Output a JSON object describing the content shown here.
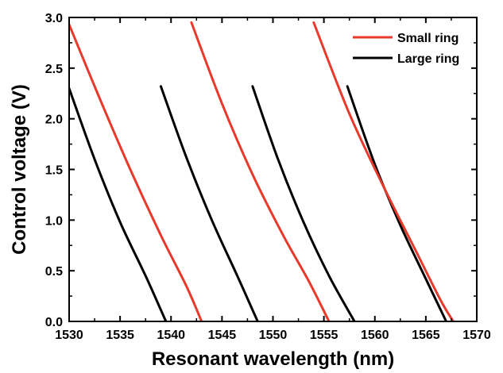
{
  "chart_data": {
    "type": "line",
    "xlabel": "Resonant wavelength (nm)",
    "ylabel": "Control voltage (V)",
    "xlim": [
      1530,
      1570
    ],
    "ylim": [
      0,
      3.0
    ],
    "xticks": [
      1530,
      1535,
      1540,
      1545,
      1550,
      1555,
      1560,
      1565,
      1570
    ],
    "yticks": [
      0.0,
      0.5,
      1.0,
      1.5,
      2.0,
      2.5,
      3.0
    ],
    "ytick_labels": [
      "0.0",
      "0.5",
      "1.0",
      "1.5",
      "2.0",
      "2.5",
      "3.0"
    ],
    "legend_position": "top-right",
    "legend": [
      {
        "label": "Small ring",
        "color": "#e8392b"
      },
      {
        "label": "Large ring",
        "color": "#000000"
      }
    ],
    "series": [
      {
        "name": "Small ring",
        "color": "#e8392b",
        "x": [
          1530.0,
          1533.0,
          1536.0,
          1539.0,
          1541.5,
          1543.0
        ],
        "y": [
          2.93,
          2.2,
          1.5,
          0.85,
          0.35,
          0.0
        ]
      },
      {
        "name": "Small ring",
        "color": "#e8392b",
        "x": [
          1542.0,
          1545.0,
          1548.0,
          1551.0,
          1553.5,
          1555.5
        ],
        "y": [
          2.95,
          2.15,
          1.45,
          0.85,
          0.4,
          0.0
        ]
      },
      {
        "name": "Small ring",
        "color": "#e8392b",
        "x": [
          1554.0,
          1557.5,
          1561.0,
          1564.0,
          1566.5,
          1567.7
        ],
        "y": [
          2.95,
          2.05,
          1.3,
          0.7,
          0.2,
          0.0
        ]
      },
      {
        "name": "Large ring",
        "color": "#000000",
        "x": [
          1530.0,
          1532.5,
          1535.0,
          1537.5,
          1539.5
        ],
        "y": [
          2.3,
          1.6,
          0.98,
          0.45,
          0.0
        ]
      },
      {
        "name": "Large ring",
        "color": "#000000",
        "x": [
          1539.0,
          1541.5,
          1544.0,
          1546.5,
          1548.5
        ],
        "y": [
          2.32,
          1.62,
          1.0,
          0.45,
          0.0
        ]
      },
      {
        "name": "Large ring",
        "color": "#000000",
        "x": [
          1548.0,
          1550.5,
          1553.0,
          1555.5,
          1558.0
        ],
        "y": [
          2.32,
          1.6,
          0.98,
          0.45,
          0.0
        ]
      },
      {
        "name": "Large ring",
        "color": "#000000",
        "x": [
          1557.3,
          1560.0,
          1562.5,
          1565.0,
          1567.0
        ],
        "y": [
          2.32,
          1.55,
          0.95,
          0.42,
          0.0
        ]
      }
    ]
  }
}
